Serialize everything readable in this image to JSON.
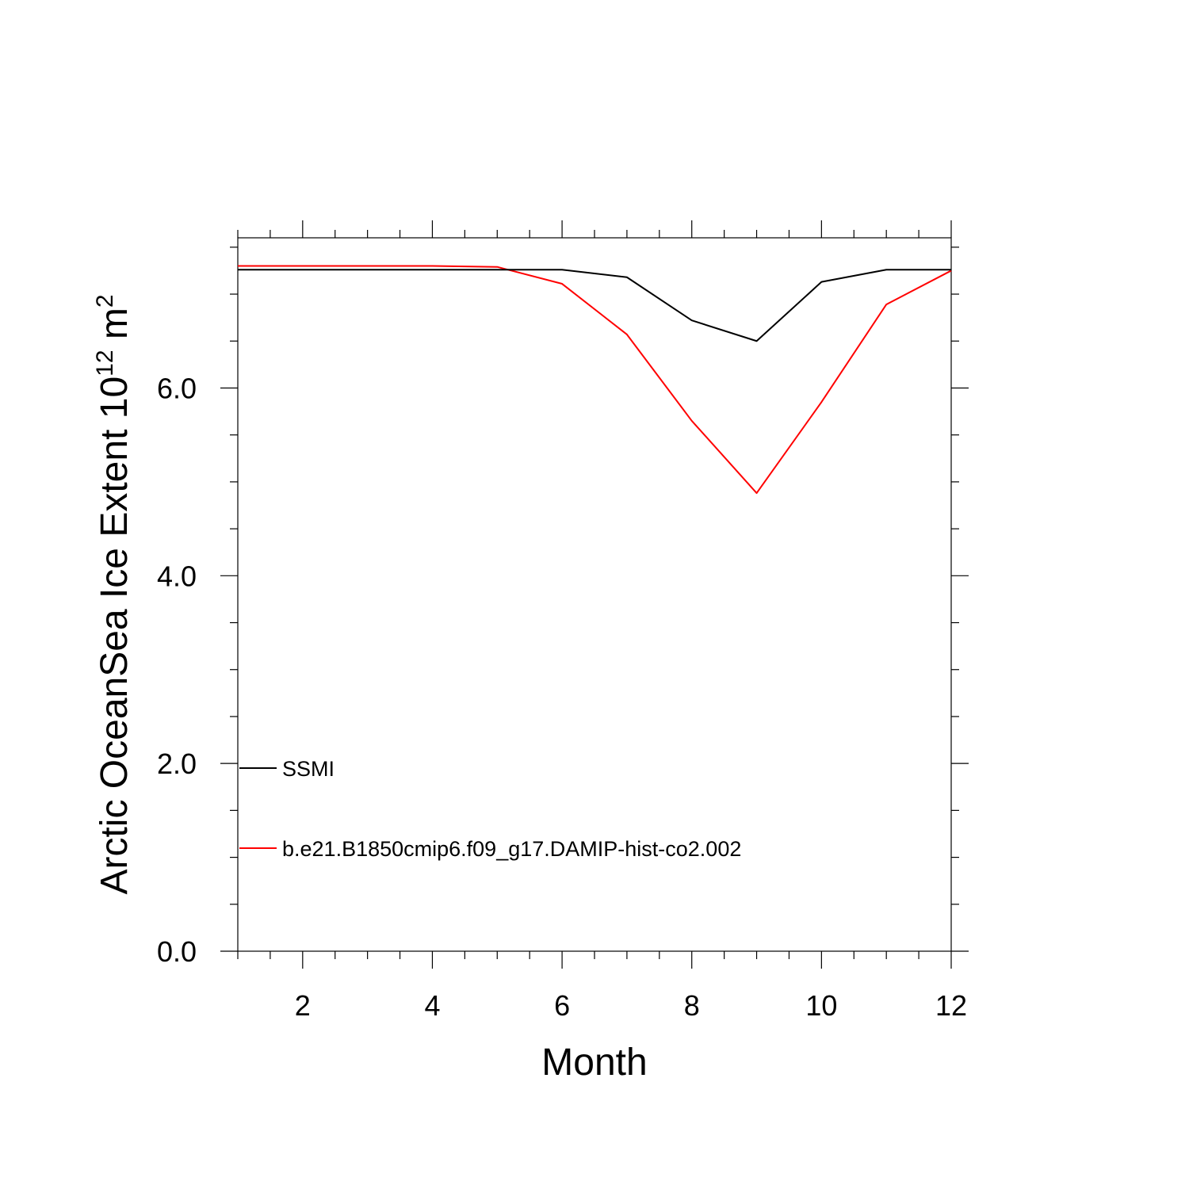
{
  "chart_data": {
    "type": "line",
    "title": "",
    "xlabel": "Month",
    "ylabel": "Arctic OceanSea Ice Extent 10",
    "ylabel_exponent": "12",
    "ylabel_unit": " m",
    "ylabel_unit_exponent": "2",
    "xlim": [
      1,
      12
    ],
    "ylim": [
      0,
      7.6
    ],
    "x_ticks": [
      2,
      4,
      6,
      8,
      10,
      12
    ],
    "x_tick_labels": [
      "2",
      "4",
      "6",
      "8",
      "10",
      "12"
    ],
    "y_ticks": [
      0,
      2,
      4,
      6
    ],
    "y_tick_labels": [
      "0.0",
      "2.0",
      "4.0",
      "6.0"
    ],
    "grid": false,
    "legend_position": "bottom-left",
    "x": [
      1,
      2,
      3,
      4,
      5,
      6,
      7,
      8,
      9,
      10,
      11,
      12
    ],
    "series": [
      {
        "name": "SSMI",
        "color": "#000000",
        "values": [
          7.26,
          7.26,
          7.26,
          7.26,
          7.26,
          7.26,
          7.18,
          6.72,
          6.5,
          7.13,
          7.26,
          7.26
        ]
      },
      {
        "name": "b.e21.B1850cmip6.f09_g17.DAMIP-hist-co2.002",
        "color": "#ff0000",
        "values": [
          7.3,
          7.3,
          7.3,
          7.3,
          7.29,
          7.11,
          6.57,
          5.65,
          4.88,
          5.85,
          6.89,
          7.25
        ]
      }
    ]
  }
}
